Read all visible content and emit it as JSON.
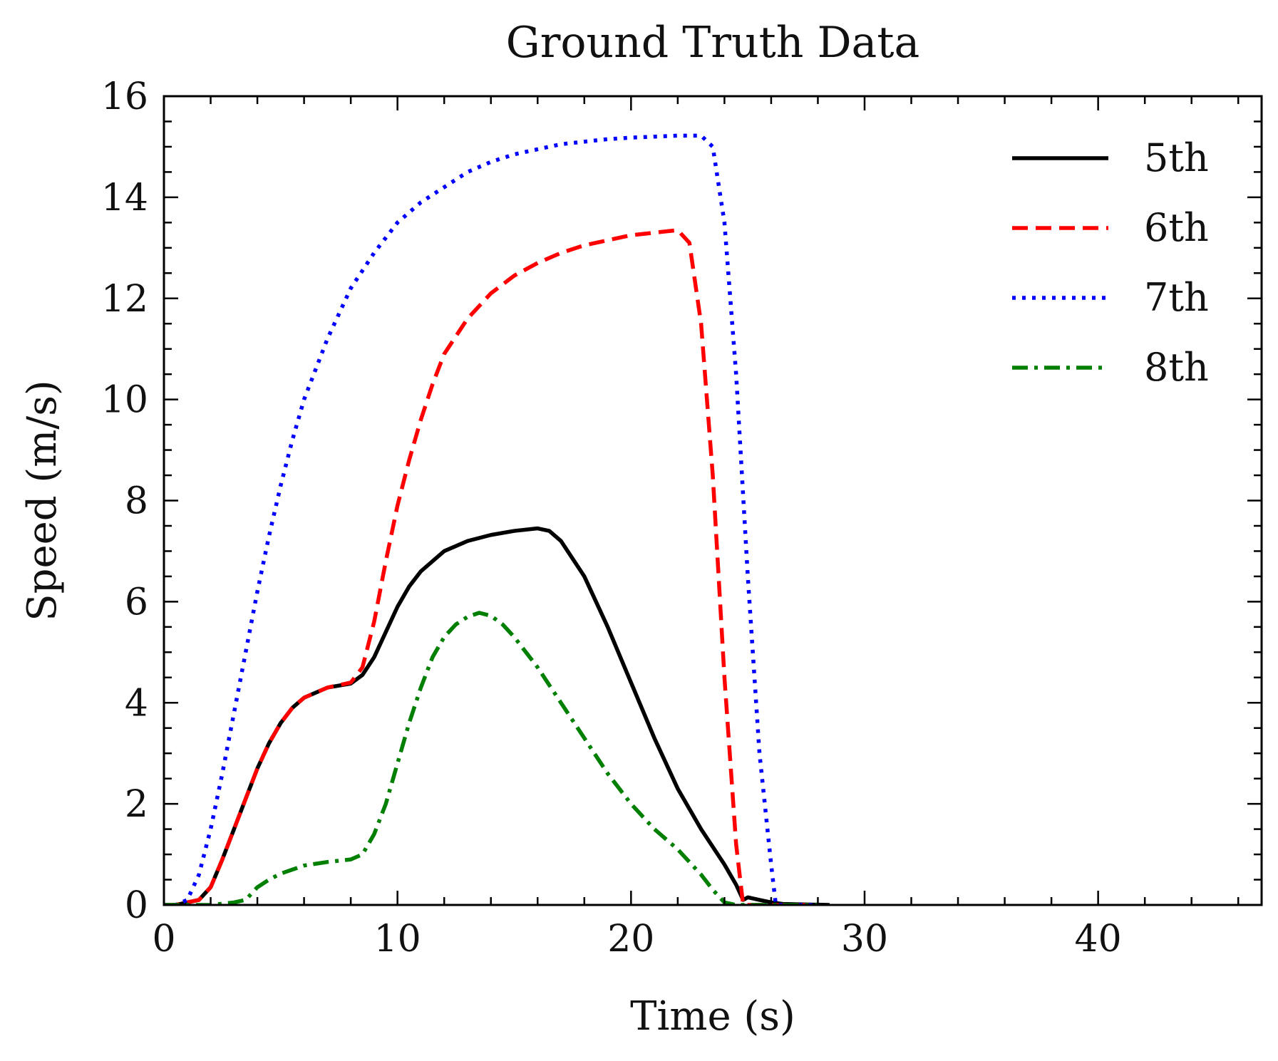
{
  "chart_data": {
    "type": "line",
    "title": "Ground Truth Data",
    "xlabel": "Time (s)",
    "ylabel": "Speed (m/s)",
    "xlim": [
      0,
      47
    ],
    "ylim": [
      0,
      16
    ],
    "xticks": [
      0,
      10,
      20,
      30,
      40
    ],
    "yticks": [
      0,
      2,
      4,
      6,
      8,
      10,
      12,
      14,
      16
    ],
    "grid": false,
    "legend_position": "top-right",
    "series": [
      {
        "name": "5th",
        "color": "#000000",
        "style": "solid",
        "points": [
          [
            0,
            0.0
          ],
          [
            0.5,
            0.0
          ],
          [
            1.0,
            0.05
          ],
          [
            1.5,
            0.1
          ],
          [
            2.0,
            0.35
          ],
          [
            2.5,
            0.9
          ],
          [
            3.0,
            1.5
          ],
          [
            3.5,
            2.1
          ],
          [
            4.0,
            2.7
          ],
          [
            4.5,
            3.2
          ],
          [
            5.0,
            3.6
          ],
          [
            5.5,
            3.9
          ],
          [
            6.0,
            4.1
          ],
          [
            7.0,
            4.3
          ],
          [
            8.0,
            4.38
          ],
          [
            8.5,
            4.55
          ],
          [
            9.0,
            4.9
          ],
          [
            9.5,
            5.4
          ],
          [
            10.0,
            5.9
          ],
          [
            10.5,
            6.3
          ],
          [
            11.0,
            6.6
          ],
          [
            12.0,
            7.0
          ],
          [
            13.0,
            7.2
          ],
          [
            14.0,
            7.32
          ],
          [
            15.0,
            7.4
          ],
          [
            16.0,
            7.45
          ],
          [
            16.5,
            7.4
          ],
          [
            17.0,
            7.2
          ],
          [
            18.0,
            6.5
          ],
          [
            19.0,
            5.5
          ],
          [
            20.0,
            4.4
          ],
          [
            21.0,
            3.3
          ],
          [
            22.0,
            2.3
          ],
          [
            23.0,
            1.5
          ],
          [
            24.0,
            0.8
          ],
          [
            24.5,
            0.4
          ],
          [
            24.8,
            0.1
          ],
          [
            25.0,
            0.15
          ],
          [
            25.5,
            0.1
          ],
          [
            26.0,
            0.05
          ],
          [
            26.5,
            0.02
          ],
          [
            28.5,
            0.0
          ]
        ]
      },
      {
        "name": "6th",
        "color": "#ff0000",
        "style": "dashed",
        "points": [
          [
            0,
            0.0
          ],
          [
            0.5,
            0.0
          ],
          [
            1.0,
            0.05
          ],
          [
            1.5,
            0.1
          ],
          [
            2.0,
            0.35
          ],
          [
            2.5,
            0.9
          ],
          [
            3.0,
            1.5
          ],
          [
            3.5,
            2.1
          ],
          [
            4.0,
            2.7
          ],
          [
            4.5,
            3.2
          ],
          [
            5.0,
            3.6
          ],
          [
            5.5,
            3.9
          ],
          [
            6.0,
            4.1
          ],
          [
            7.0,
            4.3
          ],
          [
            8.0,
            4.4
          ],
          [
            8.5,
            4.7
          ],
          [
            9.0,
            5.6
          ],
          [
            9.5,
            6.8
          ],
          [
            10.0,
            7.9
          ],
          [
            10.5,
            8.8
          ],
          [
            11.0,
            9.6
          ],
          [
            11.5,
            10.3
          ],
          [
            12.0,
            10.9
          ],
          [
            13.0,
            11.6
          ],
          [
            14.0,
            12.1
          ],
          [
            15.0,
            12.45
          ],
          [
            16.0,
            12.7
          ],
          [
            17.0,
            12.9
          ],
          [
            18.0,
            13.05
          ],
          [
            19.0,
            13.15
          ],
          [
            20.0,
            13.25
          ],
          [
            21.0,
            13.3
          ],
          [
            22.0,
            13.35
          ],
          [
            22.5,
            13.1
          ],
          [
            23.0,
            11.5
          ],
          [
            23.5,
            8.5
          ],
          [
            24.0,
            4.5
          ],
          [
            24.5,
            1.2
          ],
          [
            24.8,
            0.0
          ],
          [
            26.0,
            0.0
          ],
          [
            28.0,
            0.0
          ]
        ]
      },
      {
        "name": "7th",
        "color": "#0000ff",
        "style": "dotted",
        "points": [
          [
            0,
            0.0
          ],
          [
            0.5,
            0.0
          ],
          [
            1.0,
            0.1
          ],
          [
            1.5,
            0.6
          ],
          [
            2.0,
            1.5
          ],
          [
            2.5,
            2.6
          ],
          [
            3.0,
            3.8
          ],
          [
            3.5,
            5.0
          ],
          [
            4.0,
            6.2
          ],
          [
            4.5,
            7.3
          ],
          [
            5.0,
            8.3
          ],
          [
            5.5,
            9.2
          ],
          [
            6.0,
            10.0
          ],
          [
            7.0,
            11.2
          ],
          [
            8.0,
            12.2
          ],
          [
            9.0,
            12.9
          ],
          [
            10.0,
            13.5
          ],
          [
            11.0,
            13.9
          ],
          [
            12.0,
            14.2
          ],
          [
            13.0,
            14.5
          ],
          [
            14.0,
            14.7
          ],
          [
            15.0,
            14.85
          ],
          [
            16.0,
            14.95
          ],
          [
            17.0,
            15.05
          ],
          [
            18.0,
            15.1
          ],
          [
            19.0,
            15.15
          ],
          [
            20.0,
            15.18
          ],
          [
            21.0,
            15.2
          ],
          [
            22.0,
            15.22
          ],
          [
            23.0,
            15.22
          ],
          [
            23.5,
            15.0
          ],
          [
            24.0,
            13.5
          ],
          [
            24.5,
            10.5
          ],
          [
            25.0,
            6.5
          ],
          [
            25.5,
            3.0
          ],
          [
            26.0,
            0.8
          ],
          [
            26.2,
            0.0
          ],
          [
            27.0,
            0.0
          ],
          [
            28.0,
            0.0
          ]
        ]
      },
      {
        "name": "8th",
        "color": "#007f00",
        "style": "dashdot",
        "points": [
          [
            0,
            0.0
          ],
          [
            1.0,
            0.0
          ],
          [
            2.0,
            0.0
          ],
          [
            3.0,
            0.05
          ],
          [
            3.5,
            0.1
          ],
          [
            4.0,
            0.35
          ],
          [
            4.5,
            0.5
          ],
          [
            5.0,
            0.62
          ],
          [
            6.0,
            0.78
          ],
          [
            7.0,
            0.85
          ],
          [
            8.0,
            0.9
          ],
          [
            8.5,
            1.0
          ],
          [
            9.0,
            1.4
          ],
          [
            9.5,
            2.0
          ],
          [
            10.0,
            2.8
          ],
          [
            10.5,
            3.6
          ],
          [
            11.0,
            4.3
          ],
          [
            11.5,
            4.9
          ],
          [
            12.0,
            5.3
          ],
          [
            12.5,
            5.55
          ],
          [
            13.0,
            5.7
          ],
          [
            13.5,
            5.78
          ],
          [
            14.0,
            5.72
          ],
          [
            14.5,
            5.55
          ],
          [
            15.0,
            5.3
          ],
          [
            16.0,
            4.7
          ],
          [
            17.0,
            4.0
          ],
          [
            18.0,
            3.3
          ],
          [
            19.0,
            2.6
          ],
          [
            20.0,
            2.0
          ],
          [
            21.0,
            1.5
          ],
          [
            22.0,
            1.1
          ],
          [
            23.0,
            0.6
          ],
          [
            23.5,
            0.3
          ],
          [
            24.0,
            0.05
          ],
          [
            24.5,
            0.0
          ],
          [
            26.0,
            0.0
          ],
          [
            27.0,
            0.0
          ],
          [
            28.0,
            0.0
          ]
        ]
      }
    ]
  }
}
